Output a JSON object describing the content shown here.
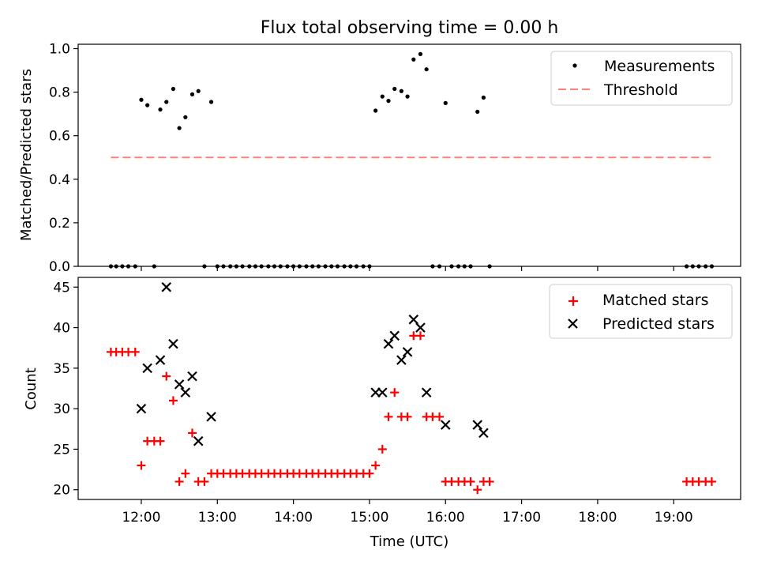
{
  "chart_data": [
    {
      "type": "scatter",
      "title": "Flux total observing time = 0.00 h",
      "xlabel": "",
      "ylabel": "Matched/Predicted stars",
      "xlim": [
        11.17,
        19.88
      ],
      "ylim": [
        0.0,
        1.02
      ],
      "yticks": [
        0.0,
        0.2,
        0.4,
        0.6,
        0.8,
        1.0
      ],
      "ytick_labels": [
        "0.0",
        "0.2",
        "0.4",
        "0.6",
        "0.8",
        "1.0"
      ],
      "legend_position": "top-right",
      "series": [
        {
          "name": "Measurements",
          "marker": "dot",
          "color": "#000000",
          "points": [
            [
              11.6,
              0
            ],
            [
              11.67,
              0
            ],
            [
              11.75,
              0
            ],
            [
              11.83,
              0
            ],
            [
              11.92,
              0
            ],
            [
              12.0,
              0.765
            ],
            [
              12.08,
              0.74
            ],
            [
              12.17,
              0
            ],
            [
              12.25,
              0.72
            ],
            [
              12.33,
              0.755
            ],
            [
              12.42,
              0.815
            ],
            [
              12.5,
              0.635
            ],
            [
              12.58,
              0.685
            ],
            [
              12.67,
              0.79
            ],
            [
              12.75,
              0.805
            ],
            [
              12.83,
              0
            ],
            [
              12.92,
              0.755
            ],
            [
              13.0,
              0
            ],
            [
              13.08,
              0
            ],
            [
              13.17,
              0
            ],
            [
              13.25,
              0
            ],
            [
              13.33,
              0
            ],
            [
              13.42,
              0
            ],
            [
              13.5,
              0
            ],
            [
              13.58,
              0
            ],
            [
              13.67,
              0
            ],
            [
              13.75,
              0
            ],
            [
              13.83,
              0
            ],
            [
              13.92,
              0
            ],
            [
              14.0,
              0
            ],
            [
              14.08,
              0
            ],
            [
              14.17,
              0
            ],
            [
              14.25,
              0
            ],
            [
              14.33,
              0
            ],
            [
              14.42,
              0
            ],
            [
              14.5,
              0
            ],
            [
              14.58,
              0
            ],
            [
              14.67,
              0
            ],
            [
              14.75,
              0
            ],
            [
              14.83,
              0
            ],
            [
              14.92,
              0
            ],
            [
              15.0,
              0
            ],
            [
              15.08,
              0.715
            ],
            [
              15.17,
              0.78
            ],
            [
              15.25,
              0.76
            ],
            [
              15.33,
              0.815
            ],
            [
              15.42,
              0.805
            ],
            [
              15.5,
              0.78
            ],
            [
              15.58,
              0.95
            ],
            [
              15.67,
              0.975
            ],
            [
              15.75,
              0.905
            ],
            [
              15.83,
              0
            ],
            [
              15.92,
              0
            ],
            [
              16.0,
              0.75
            ],
            [
              16.08,
              0
            ],
            [
              16.17,
              0
            ],
            [
              16.25,
              0
            ],
            [
              16.33,
              0
            ],
            [
              16.42,
              0.71
            ],
            [
              16.5,
              0.775
            ],
            [
              16.58,
              0
            ],
            [
              19.17,
              0
            ],
            [
              19.25,
              0
            ],
            [
              19.33,
              0
            ],
            [
              19.42,
              0
            ],
            [
              19.5,
              0
            ]
          ]
        },
        {
          "name": "Threshold",
          "marker": "dashed-line",
          "color": "#ff7f7f",
          "x": [
            11.6,
            19.5
          ],
          "y": [
            0.5,
            0.5
          ]
        }
      ]
    },
    {
      "type": "scatter",
      "title": "",
      "xlabel": "Time (UTC)",
      "ylabel": "Count",
      "xlim": [
        11.17,
        19.88
      ],
      "ylim": [
        18.8,
        46.2
      ],
      "yticks": [
        20,
        25,
        30,
        35,
        40,
        45
      ],
      "ytick_labels": [
        "20",
        "25",
        "30",
        "35",
        "40",
        "45"
      ],
      "xticks": [
        12,
        13,
        14,
        15,
        16,
        17,
        18,
        19
      ],
      "xtick_labels": [
        "12:00",
        "13:00",
        "14:00",
        "15:00",
        "16:00",
        "17:00",
        "18:00",
        "19:00"
      ],
      "legend_position": "top-right",
      "series": [
        {
          "name": "Matched stars",
          "marker": "plus",
          "color": "#ff0000",
          "points": [
            [
              11.6,
              37
            ],
            [
              11.67,
              37
            ],
            [
              11.75,
              37
            ],
            [
              11.83,
              37
            ],
            [
              11.92,
              37
            ],
            [
              12.0,
              23
            ],
            [
              12.08,
              26
            ],
            [
              12.17,
              26
            ],
            [
              12.25,
              26
            ],
            [
              12.33,
              34
            ],
            [
              12.42,
              31
            ],
            [
              12.5,
              21
            ],
            [
              12.58,
              22
            ],
            [
              12.67,
              27
            ],
            [
              12.75,
              21
            ],
            [
              12.83,
              21
            ],
            [
              12.92,
              22
            ],
            [
              13.0,
              22
            ],
            [
              13.08,
              22
            ],
            [
              13.17,
              22
            ],
            [
              13.25,
              22
            ],
            [
              13.33,
              22
            ],
            [
              13.42,
              22
            ],
            [
              13.5,
              22
            ],
            [
              13.58,
              22
            ],
            [
              13.67,
              22
            ],
            [
              13.75,
              22
            ],
            [
              13.83,
              22
            ],
            [
              13.92,
              22
            ],
            [
              14.0,
              22
            ],
            [
              14.08,
              22
            ],
            [
              14.17,
              22
            ],
            [
              14.25,
              22
            ],
            [
              14.33,
              22
            ],
            [
              14.42,
              22
            ],
            [
              14.5,
              22
            ],
            [
              14.58,
              22
            ],
            [
              14.67,
              22
            ],
            [
              14.75,
              22
            ],
            [
              14.83,
              22
            ],
            [
              14.92,
              22
            ],
            [
              15.0,
              22
            ],
            [
              15.08,
              23
            ],
            [
              15.17,
              25
            ],
            [
              15.25,
              29
            ],
            [
              15.33,
              32
            ],
            [
              15.42,
              29
            ],
            [
              15.5,
              29
            ],
            [
              15.58,
              39
            ],
            [
              15.67,
              39
            ],
            [
              15.75,
              29
            ],
            [
              15.83,
              29
            ],
            [
              15.92,
              29
            ],
            [
              16.0,
              21
            ],
            [
              16.08,
              21
            ],
            [
              16.17,
              21
            ],
            [
              16.25,
              21
            ],
            [
              16.33,
              21
            ],
            [
              16.42,
              20
            ],
            [
              16.5,
              21
            ],
            [
              16.58,
              21
            ],
            [
              19.17,
              21
            ],
            [
              19.25,
              21
            ],
            [
              19.33,
              21
            ],
            [
              19.42,
              21
            ],
            [
              19.5,
              21
            ]
          ]
        },
        {
          "name": "Predicted stars",
          "marker": "x",
          "color": "#000000",
          "points": [
            [
              12.0,
              30
            ],
            [
              12.08,
              35
            ],
            [
              12.25,
              36
            ],
            [
              12.33,
              45
            ],
            [
              12.42,
              38
            ],
            [
              12.5,
              33
            ],
            [
              12.58,
              32
            ],
            [
              12.67,
              34
            ],
            [
              12.75,
              26
            ],
            [
              12.92,
              29
            ],
            [
              15.08,
              32
            ],
            [
              15.17,
              32
            ],
            [
              15.25,
              38
            ],
            [
              15.33,
              39
            ],
            [
              15.42,
              36
            ],
            [
              15.5,
              37
            ],
            [
              15.58,
              41
            ],
            [
              15.67,
              40
            ],
            [
              15.75,
              32
            ],
            [
              16.0,
              28
            ],
            [
              16.42,
              28
            ],
            [
              16.5,
              27
            ]
          ]
        }
      ]
    }
  ]
}
